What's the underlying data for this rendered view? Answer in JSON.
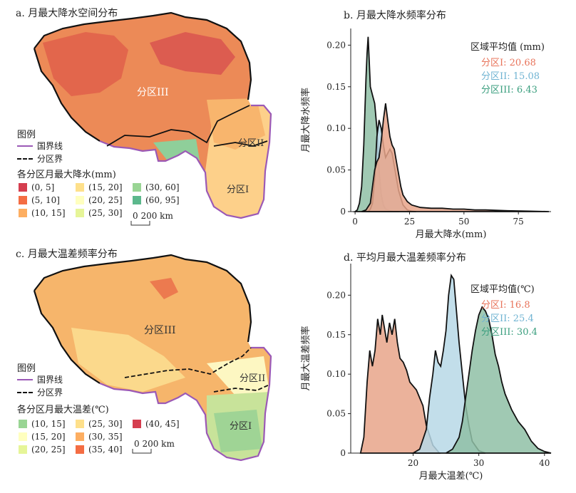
{
  "panels": {
    "a": {
      "title": "a. 月最大降水空间分布",
      "zone_labels": [
        "分区III",
        "分区II",
        "分区I"
      ],
      "legend_title": "图例",
      "border_label": "国界线",
      "zone_boundary_label": "分区界",
      "class_title": "各分区月最大降水(mm)",
      "classes": [
        {
          "label": "(0, 5]",
          "color": "#d53e4f"
        },
        {
          "label": "(5, 10]",
          "color": "#f46d43"
        },
        {
          "label": "(10, 15]",
          "color": "#fdae61"
        },
        {
          "label": "(15, 20]",
          "color": "#fee08b"
        },
        {
          "label": "(20, 25]",
          "color": "#ffffbf"
        },
        {
          "label": "(25, 30]",
          "color": "#e6f598"
        },
        {
          "label": "(30, 60]",
          "color": "#99d594"
        },
        {
          "label": "(60, 95]",
          "color": "#5cb88c"
        }
      ],
      "scale_label": "0  200 km"
    },
    "c": {
      "title": "c. 月最大温差频率分布",
      "zone_labels": [
        "分区III",
        "分区II",
        "分区I"
      ],
      "legend_title": "图例",
      "border_label": "国界线",
      "zone_boundary_label": "分区界",
      "class_title": "各分区月最大温差(℃)",
      "classes": [
        {
          "label": "(10, 15]",
          "color": "#99d594"
        },
        {
          "label": "(15, 20]",
          "color": "#ffffbf"
        },
        {
          "label": "(20, 25]",
          "color": "#e6f598"
        },
        {
          "label": "(25, 30]",
          "color": "#fee08b"
        },
        {
          "label": "(30, 35]",
          "color": "#fdae61"
        },
        {
          "label": "(35, 40]",
          "color": "#f46d43"
        },
        {
          "label": "(40, 45]",
          "color": "#d53e4f"
        }
      ],
      "scale_label": "0  200 km"
    }
  },
  "colors": {
    "zone1": "#e8735a",
    "zone2": "#6fb3d2",
    "zone3": "#3a9e7e",
    "zone1_fill": "#e8a58a",
    "zone2_fill": "#b7d8e6",
    "zone3_fill": "#8fbfa6",
    "national_border": "#9b59b6",
    "map_orange": "#f0945a",
    "map_red": "#d9534f"
  },
  "chart_data": [
    {
      "id": "b",
      "type": "area",
      "title": "b. 月最大降水频率分布",
      "xlabel": "月最大降水(mm)",
      "ylabel": "月最大降水频率",
      "xlim": [
        -2,
        90
      ],
      "ylim": [
        0,
        0.22
      ],
      "xticks": [
        0,
        25,
        50,
        75
      ],
      "yticks": [
        0,
        0.05,
        0.1,
        0.15,
        0.2
      ],
      "ytick_labels": [
        "0",
        "0.05",
        "0.10",
        "0.15",
        "0.20"
      ],
      "legend_title": "区域平均值 (mm)",
      "legend": [
        "分区I: 20.68",
        "分区II: 15.08",
        "分区III: 6.43"
      ],
      "series": [
        {
          "key": "zone3",
          "x": [
            0,
            1,
            2,
            3,
            4,
            5,
            5.5,
            6,
            6.5,
            7,
            8,
            9,
            10,
            11,
            12,
            13,
            14,
            16,
            18,
            20
          ],
          "values": [
            0,
            0.002,
            0.01,
            0.03,
            0.08,
            0.16,
            0.19,
            0.21,
            0.18,
            0.15,
            0.14,
            0.13,
            0.1,
            0.05,
            0.02,
            0.008,
            0.003,
            0.001,
            0,
            0
          ]
        },
        {
          "key": "zone2",
          "x": [
            6,
            7,
            8,
            9,
            10,
            11,
            12,
            13,
            14,
            15,
            16,
            17,
            18,
            19,
            20,
            22,
            24,
            26,
            28
          ],
          "values": [
            0,
            0.003,
            0.01,
            0.04,
            0.09,
            0.11,
            0.1,
            0.08,
            0.065,
            0.07,
            0.075,
            0.07,
            0.055,
            0.04,
            0.025,
            0.008,
            0.002,
            0.0005,
            0
          ]
        },
        {
          "key": "zone1",
          "x": [
            3,
            5,
            7,
            8,
            9,
            10,
            11,
            12,
            13,
            14,
            15,
            16,
            17,
            18,
            19,
            20,
            21,
            22,
            24,
            26,
            30,
            35,
            40,
            45,
            50,
            55,
            60,
            70,
            80,
            89
          ],
          "values": [
            0,
            0.002,
            0.01,
            0.03,
            0.05,
            0.06,
            0.065,
            0.085,
            0.11,
            0.13,
            0.11,
            0.09,
            0.08,
            0.075,
            0.06,
            0.045,
            0.03,
            0.02,
            0.012,
            0.008,
            0.005,
            0.004,
            0.004,
            0.003,
            0.003,
            0.002,
            0.002,
            0.001,
            0.0005,
            0
          ]
        }
      ]
    },
    {
      "id": "d",
      "type": "area",
      "title": "d. 平均月最大温差频率分布",
      "xlabel": "月最大温差(℃)",
      "ylabel": "月最大温差频率",
      "xlim": [
        10.5,
        41
      ],
      "ylim": [
        0,
        0.24
      ],
      "xticks": [
        20,
        30,
        40
      ],
      "yticks": [
        0,
        0.05,
        0.1,
        0.15,
        0.2
      ],
      "ytick_labels": [
        "0",
        "0.05",
        "0.10",
        "0.15",
        "0.20"
      ],
      "legend_title": "区域平均值(℃)",
      "legend": [
        "分区I: 16.8",
        "分区II: 25.4",
        "分区III: 30.4"
      ],
      "series": [
        {
          "key": "zone1",
          "x": [
            12,
            12.5,
            13,
            13.4,
            13.8,
            14.2,
            14.6,
            15,
            15.3,
            15.6,
            16,
            16.4,
            16.8,
            17.2,
            17.6,
            18,
            18.5,
            19,
            19.5,
            20,
            20.5,
            21,
            21.5,
            22,
            23,
            24
          ],
          "values": [
            0,
            0.02,
            0.09,
            0.13,
            0.11,
            0.13,
            0.17,
            0.15,
            0.175,
            0.16,
            0.14,
            0.165,
            0.15,
            0.17,
            0.14,
            0.12,
            0.115,
            0.105,
            0.09,
            0.085,
            0.08,
            0.07,
            0.06,
            0.035,
            0.01,
            0
          ]
        },
        {
          "key": "zone2",
          "x": [
            20,
            21,
            22,
            22.5,
            23,
            23.4,
            23.8,
            24.2,
            24.6,
            25,
            25.4,
            25.8,
            26.2,
            26.6,
            27,
            27.5,
            28,
            28.5,
            29,
            30,
            31
          ],
          "values": [
            0,
            0.005,
            0.03,
            0.07,
            0.1,
            0.13,
            0.115,
            0.11,
            0.13,
            0.155,
            0.2,
            0.225,
            0.22,
            0.18,
            0.14,
            0.1,
            0.06,
            0.035,
            0.015,
            0.003,
            0
          ]
        },
        {
          "key": "zone3",
          "x": [
            25,
            26,
            27,
            27.5,
            28,
            28.5,
            29,
            29.5,
            30,
            30.5,
            31,
            31.5,
            32,
            32.5,
            33,
            33.5,
            34,
            34.5,
            35,
            36,
            37,
            38,
            39,
            40,
            41
          ],
          "values": [
            0,
            0.005,
            0.02,
            0.04,
            0.07,
            0.1,
            0.13,
            0.155,
            0.175,
            0.185,
            0.18,
            0.17,
            0.15,
            0.125,
            0.11,
            0.09,
            0.075,
            0.065,
            0.055,
            0.04,
            0.03,
            0.015,
            0.006,
            0.002,
            0
          ]
        }
      ]
    }
  ]
}
